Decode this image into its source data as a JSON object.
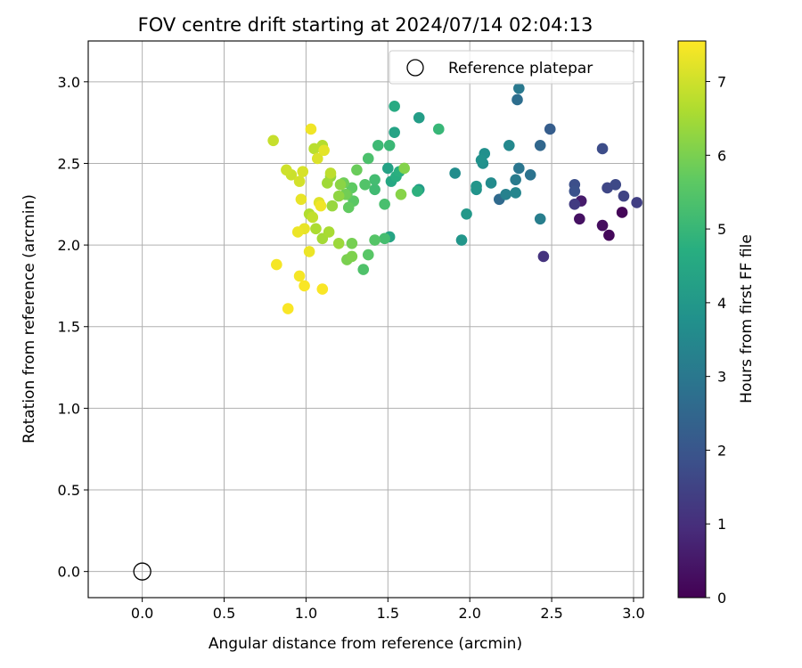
{
  "chart_data": {
    "type": "scatter",
    "title": "FOV centre drift starting at 2024/07/14 02:04:13",
    "xlabel": "Angular distance from reference (arcmin)",
    "ylabel": "Rotation from reference (arcmin)",
    "xlim": [
      -0.33,
      3.06
    ],
    "ylim": [
      -0.16,
      3.25
    ],
    "grid": true,
    "legend": {
      "placement": "top-right",
      "entries": [
        "Reference platepar"
      ]
    },
    "x_ticks": [
      "0.0",
      "0.5",
      "1.0",
      "1.5",
      "2.0",
      "2.5",
      "3.0"
    ],
    "y_ticks": [
      "0.0",
      "0.5",
      "1.0",
      "1.5",
      "2.0",
      "2.5",
      "3.0"
    ],
    "colorbar": {
      "label": "Hours from first FF file",
      "range": [
        0,
        7.55
      ],
      "ticks": [
        "0",
        "1",
        "2",
        "3",
        "4",
        "5",
        "6",
        "7"
      ],
      "colormap": "viridis"
    },
    "reference_point": {
      "x": 0.0,
      "y": 0.0
    },
    "points": [
      {
        "x": 2.93,
        "y": 2.2,
        "h": 0.1
      },
      {
        "x": 2.85,
        "y": 2.06,
        "h": 0.15
      },
      {
        "x": 2.81,
        "y": 2.12,
        "h": 0.25
      },
      {
        "x": 2.67,
        "y": 2.16,
        "h": 0.35
      },
      {
        "x": 2.68,
        "y": 2.27,
        "h": 0.55
      },
      {
        "x": 2.45,
        "y": 1.93,
        "h": 1.1
      },
      {
        "x": 2.64,
        "y": 2.25,
        "h": 1.3
      },
      {
        "x": 3.02,
        "y": 2.26,
        "h": 1.4
      },
      {
        "x": 2.94,
        "y": 2.3,
        "h": 1.5
      },
      {
        "x": 2.84,
        "y": 2.35,
        "h": 1.6
      },
      {
        "x": 2.89,
        "y": 2.37,
        "h": 1.65
      },
      {
        "x": 2.81,
        "y": 2.59,
        "h": 1.75
      },
      {
        "x": 2.64,
        "y": 2.37,
        "h": 1.8
      },
      {
        "x": 2.64,
        "y": 2.33,
        "h": 1.9
      },
      {
        "x": 2.49,
        "y": 2.71,
        "h": 2.2
      },
      {
        "x": 2.43,
        "y": 2.61,
        "h": 2.5
      },
      {
        "x": 2.18,
        "y": 2.28,
        "h": 2.6
      },
      {
        "x": 2.29,
        "y": 2.89,
        "h": 2.7
      },
      {
        "x": 2.37,
        "y": 2.43,
        "h": 2.85
      },
      {
        "x": 2.3,
        "y": 2.47,
        "h": 2.95
      },
      {
        "x": 2.3,
        "y": 2.96,
        "h": 3.05
      },
      {
        "x": 2.28,
        "y": 2.4,
        "h": 3.1
      },
      {
        "x": 2.43,
        "y": 2.16,
        "h": 3.2
      },
      {
        "x": 2.22,
        "y": 2.31,
        "h": 3.3
      },
      {
        "x": 2.28,
        "y": 2.32,
        "h": 3.4
      },
      {
        "x": 2.24,
        "y": 2.61,
        "h": 3.5
      },
      {
        "x": 2.13,
        "y": 2.38,
        "h": 3.6
      },
      {
        "x": 1.91,
        "y": 2.44,
        "h": 3.65
      },
      {
        "x": 2.08,
        "y": 2.5,
        "h": 3.7
      },
      {
        "x": 2.09,
        "y": 2.56,
        "h": 3.75
      },
      {
        "x": 2.07,
        "y": 2.52,
        "h": 3.8
      },
      {
        "x": 2.04,
        "y": 2.34,
        "h": 3.85
      },
      {
        "x": 2.04,
        "y": 2.36,
        "h": 3.9
      },
      {
        "x": 1.95,
        "y": 2.03,
        "h": 3.95
      },
      {
        "x": 1.98,
        "y": 2.19,
        "h": 4.0
      },
      {
        "x": 1.69,
        "y": 2.34,
        "h": 4.1
      },
      {
        "x": 1.69,
        "y": 2.78,
        "h": 4.15
      },
      {
        "x": 1.5,
        "y": 2.47,
        "h": 4.3
      },
      {
        "x": 1.54,
        "y": 2.69,
        "h": 4.35
      },
      {
        "x": 1.51,
        "y": 2.05,
        "h": 4.4
      },
      {
        "x": 1.52,
        "y": 2.39,
        "h": 4.5
      },
      {
        "x": 1.54,
        "y": 2.85,
        "h": 4.6
      },
      {
        "x": 1.55,
        "y": 2.42,
        "h": 4.7
      },
      {
        "x": 1.57,
        "y": 2.45,
        "h": 4.75
      },
      {
        "x": 1.68,
        "y": 2.33,
        "h": 4.8
      },
      {
        "x": 1.81,
        "y": 2.71,
        "h": 5.0
      },
      {
        "x": 1.51,
        "y": 2.61,
        "h": 5.05
      },
      {
        "x": 1.44,
        "y": 2.61,
        "h": 5.1
      },
      {
        "x": 1.42,
        "y": 2.34,
        "h": 5.15
      },
      {
        "x": 1.42,
        "y": 2.4,
        "h": 5.2
      },
      {
        "x": 1.48,
        "y": 2.04,
        "h": 5.25
      },
      {
        "x": 1.48,
        "y": 2.25,
        "h": 5.3
      },
      {
        "x": 1.38,
        "y": 2.53,
        "h": 5.35
      },
      {
        "x": 1.35,
        "y": 1.85,
        "h": 5.4
      },
      {
        "x": 1.36,
        "y": 2.37,
        "h": 5.45
      },
      {
        "x": 1.42,
        "y": 2.03,
        "h": 5.5
      },
      {
        "x": 1.38,
        "y": 1.94,
        "h": 5.55
      },
      {
        "x": 1.29,
        "y": 2.27,
        "h": 5.6
      },
      {
        "x": 1.28,
        "y": 2.35,
        "h": 5.65
      },
      {
        "x": 1.26,
        "y": 2.23,
        "h": 5.7
      },
      {
        "x": 1.25,
        "y": 2.31,
        "h": 5.75
      },
      {
        "x": 1.31,
        "y": 2.46,
        "h": 5.8
      },
      {
        "x": 1.23,
        "y": 2.38,
        "h": 5.85
      },
      {
        "x": 1.24,
        "y": 2.31,
        "h": 5.9
      },
      {
        "x": 1.28,
        "y": 2.01,
        "h": 5.95
      },
      {
        "x": 1.25,
        "y": 1.91,
        "h": 6.0
      },
      {
        "x": 1.28,
        "y": 1.93,
        "h": 6.05
      },
      {
        "x": 1.6,
        "y": 2.47,
        "h": 6.1
      },
      {
        "x": 1.58,
        "y": 2.31,
        "h": 6.15
      },
      {
        "x": 1.21,
        "y": 2.37,
        "h": 6.2
      },
      {
        "x": 1.2,
        "y": 2.3,
        "h": 6.25
      },
      {
        "x": 1.15,
        "y": 2.42,
        "h": 6.3
      },
      {
        "x": 1.16,
        "y": 2.24,
        "h": 6.35
      },
      {
        "x": 1.2,
        "y": 2.01,
        "h": 6.4
      },
      {
        "x": 1.13,
        "y": 2.38,
        "h": 6.45
      },
      {
        "x": 1.1,
        "y": 2.04,
        "h": 6.5
      },
      {
        "x": 1.14,
        "y": 2.08,
        "h": 6.55
      },
      {
        "x": 1.06,
        "y": 2.1,
        "h": 6.6
      },
      {
        "x": 1.02,
        "y": 2.19,
        "h": 6.65
      },
      {
        "x": 1.1,
        "y": 2.61,
        "h": 6.7
      },
      {
        "x": 1.05,
        "y": 2.59,
        "h": 6.75
      },
      {
        "x": 1.15,
        "y": 2.44,
        "h": 6.8
      },
      {
        "x": 1.04,
        "y": 2.17,
        "h": 6.85
      },
      {
        "x": 0.8,
        "y": 2.64,
        "h": 6.9
      },
      {
        "x": 0.91,
        "y": 2.43,
        "h": 6.95
      },
      {
        "x": 0.88,
        "y": 2.46,
        "h": 7.0
      },
      {
        "x": 0.96,
        "y": 2.39,
        "h": 7.05
      },
      {
        "x": 0.98,
        "y": 2.45,
        "h": 7.1
      },
      {
        "x": 1.07,
        "y": 2.53,
        "h": 7.15
      },
      {
        "x": 1.08,
        "y": 2.26,
        "h": 7.2
      },
      {
        "x": 1.11,
        "y": 2.58,
        "h": 7.25
      },
      {
        "x": 0.97,
        "y": 2.28,
        "h": 7.3
      },
      {
        "x": 0.99,
        "y": 2.1,
        "h": 7.3
      },
      {
        "x": 0.95,
        "y": 2.08,
        "h": 7.35
      },
      {
        "x": 1.02,
        "y": 1.96,
        "h": 7.35
      },
      {
        "x": 1.09,
        "y": 2.24,
        "h": 7.4
      },
      {
        "x": 1.03,
        "y": 2.71,
        "h": 7.4
      },
      {
        "x": 0.82,
        "y": 1.88,
        "h": 7.45
      },
      {
        "x": 0.96,
        "y": 1.81,
        "h": 7.45
      },
      {
        "x": 0.99,
        "y": 1.75,
        "h": 7.5
      },
      {
        "x": 1.1,
        "y": 1.73,
        "h": 7.5
      },
      {
        "x": 0.89,
        "y": 1.61,
        "h": 7.5
      }
    ]
  }
}
